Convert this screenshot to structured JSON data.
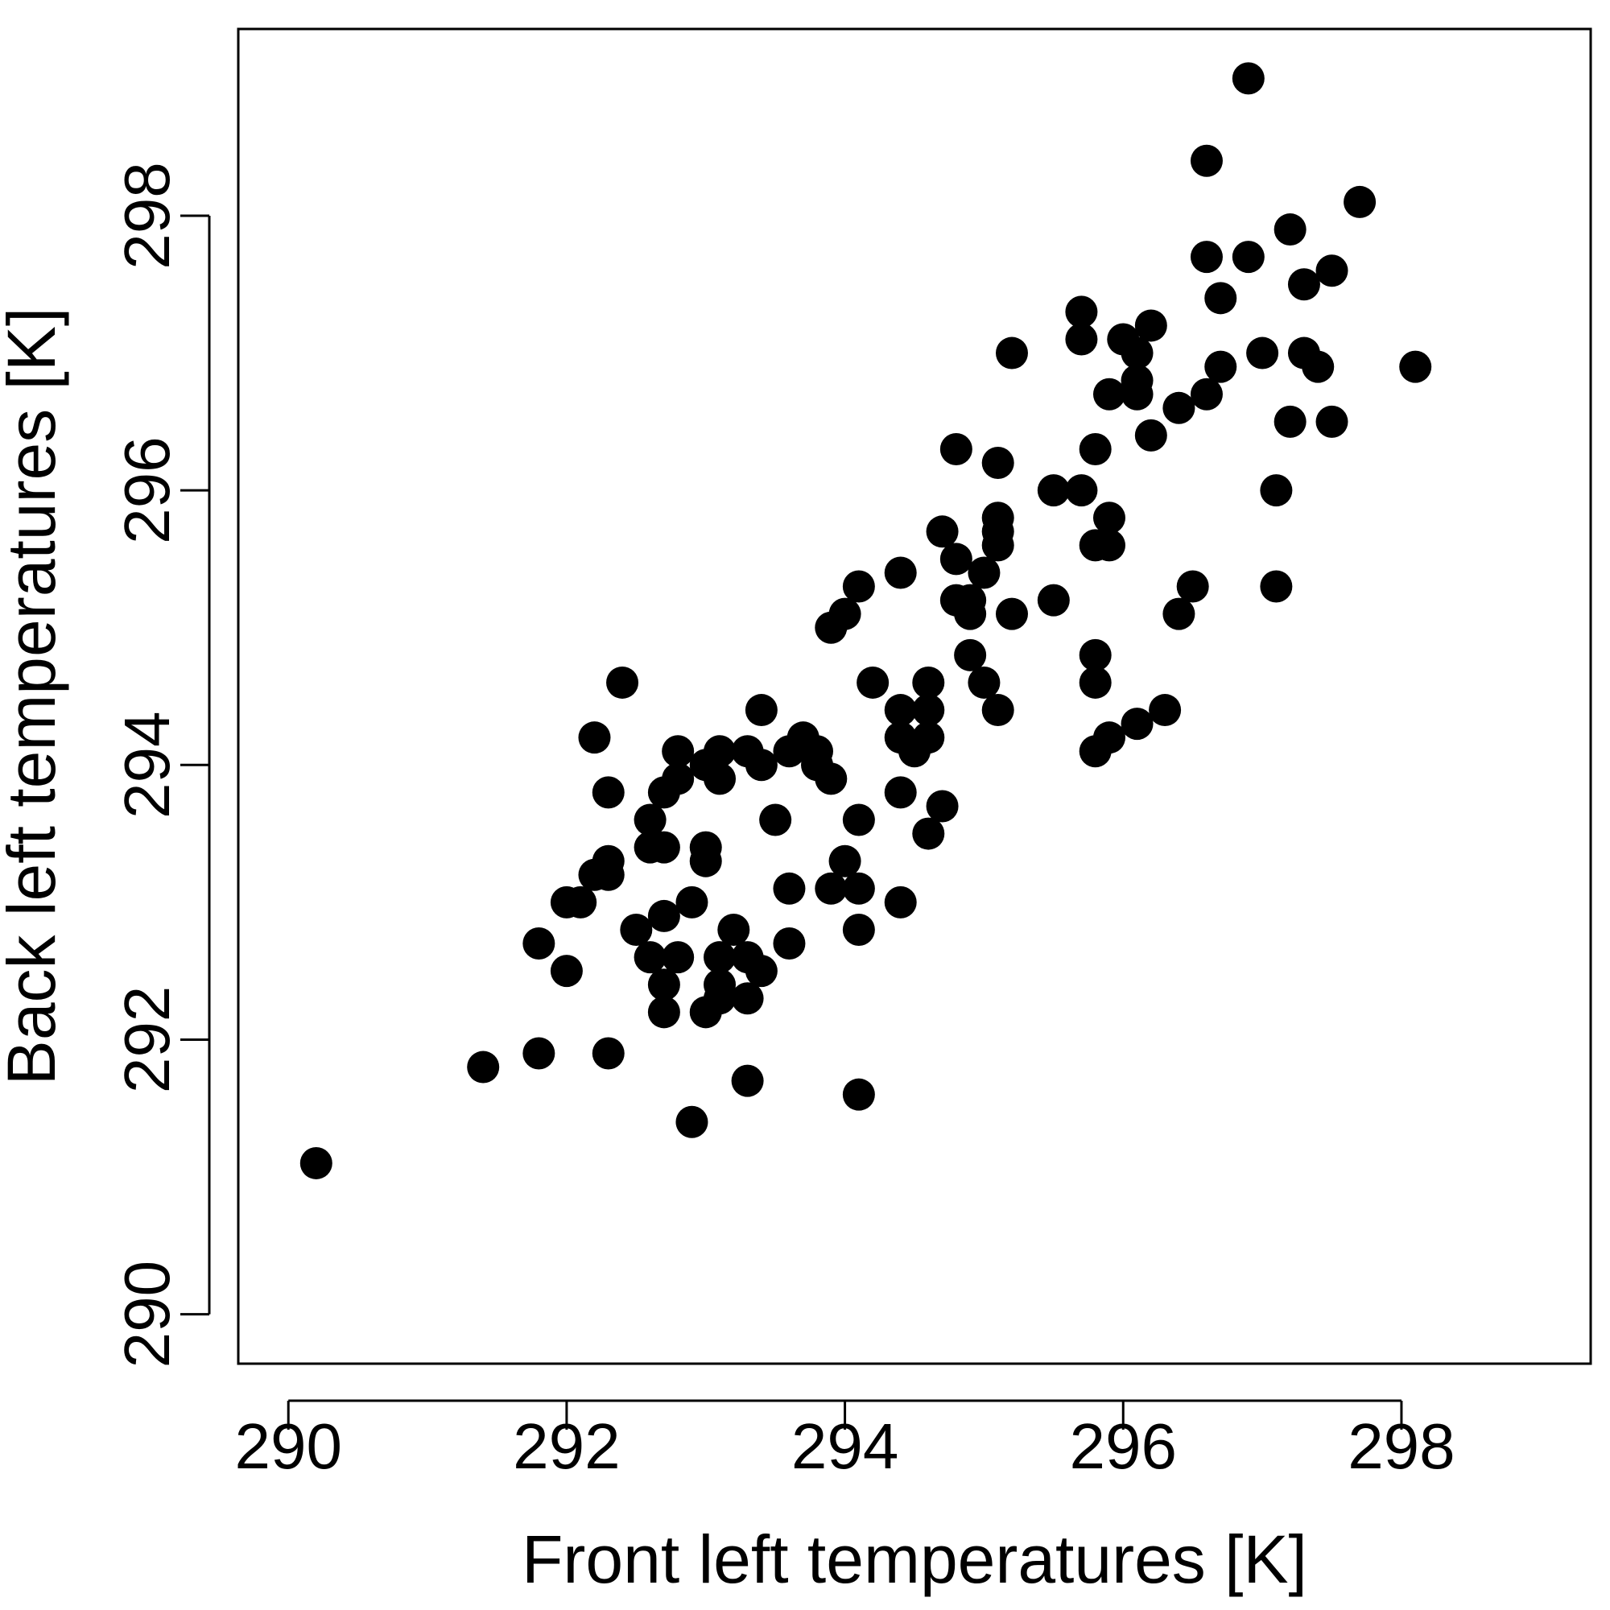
{
  "chart_data": {
    "type": "scatter",
    "title": "",
    "xlabel": "Front left temperatures [K]",
    "ylabel": "Back left temperatures [K]",
    "xlim": [
      289.64,
      299.36
    ],
    "ylim": [
      289.64,
      299.36
    ],
    "xticks": [
      290,
      292,
      294,
      296,
      298
    ],
    "yticks": [
      290,
      292,
      294,
      296,
      298
    ],
    "xtick_labels": [
      "290",
      "292",
      "294",
      "296",
      "298"
    ],
    "ytick_labels": [
      "290",
      "292",
      "294",
      "296",
      "298"
    ],
    "grid": false,
    "marker": "filled-circle",
    "color": "#000000",
    "points": [
      [
        290.2,
        291.1
      ],
      [
        291.4,
        291.8
      ],
      [
        291.8,
        291.9
      ],
      [
        292.3,
        291.9
      ],
      [
        292.9,
        291.4
      ],
      [
        293.3,
        291.7
      ],
      [
        294.1,
        291.6
      ],
      [
        291.8,
        292.7
      ],
      [
        292.0,
        292.5
      ],
      [
        292.0,
        293.0
      ],
      [
        292.1,
        293.0
      ],
      [
        292.2,
        293.2
      ],
      [
        292.3,
        293.2
      ],
      [
        292.3,
        293.3
      ],
      [
        292.5,
        292.8
      ],
      [
        292.6,
        292.6
      ],
      [
        292.6,
        293.4
      ],
      [
        292.6,
        293.6
      ],
      [
        292.7,
        292.2
      ],
      [
        292.7,
        292.4
      ],
      [
        292.7,
        292.9
      ],
      [
        292.7,
        293.4
      ],
      [
        292.7,
        293.8
      ],
      [
        292.8,
        292.6
      ],
      [
        292.8,
        293.9
      ],
      [
        292.8,
        294.1
      ],
      [
        292.9,
        293.0
      ],
      [
        293.0,
        292.2
      ],
      [
        293.0,
        293.3
      ],
      [
        293.0,
        293.4
      ],
      [
        293.0,
        294.0
      ],
      [
        293.1,
        292.3
      ],
      [
        293.1,
        292.4
      ],
      [
        293.1,
        292.6
      ],
      [
        293.1,
        293.9
      ],
      [
        293.1,
        294.1
      ],
      [
        293.2,
        292.8
      ],
      [
        293.3,
        292.3
      ],
      [
        293.3,
        292.6
      ],
      [
        293.3,
        294.1
      ],
      [
        293.4,
        292.5
      ],
      [
        293.4,
        294.0
      ],
      [
        293.4,
        294.4
      ],
      [
        293.5,
        293.6
      ],
      [
        293.6,
        292.7
      ],
      [
        293.6,
        293.1
      ],
      [
        293.6,
        294.1
      ],
      [
        293.7,
        294.2
      ],
      [
        293.8,
        294.0
      ],
      [
        293.8,
        294.1
      ],
      [
        293.9,
        293.1
      ],
      [
        293.9,
        293.9
      ],
      [
        293.9,
        295.0
      ],
      [
        294.0,
        293.3
      ],
      [
        294.0,
        295.1
      ],
      [
        294.1,
        292.8
      ],
      [
        294.1,
        293.1
      ],
      [
        294.1,
        293.6
      ],
      [
        294.1,
        295.3
      ],
      [
        294.2,
        294.6
      ],
      [
        292.2,
        294.2
      ],
      [
        292.3,
        293.8
      ],
      [
        292.4,
        294.6
      ],
      [
        294.4,
        293.0
      ],
      [
        294.4,
        293.8
      ],
      [
        294.4,
        294.2
      ],
      [
        294.4,
        294.4
      ],
      [
        294.4,
        295.4
      ],
      [
        294.5,
        294.1
      ],
      [
        294.6,
        293.5
      ],
      [
        294.6,
        294.2
      ],
      [
        294.6,
        294.4
      ],
      [
        294.6,
        294.6
      ],
      [
        294.7,
        293.7
      ],
      [
        294.7,
        295.7
      ],
      [
        294.8,
        295.2
      ],
      [
        294.8,
        295.5
      ],
      [
        294.8,
        296.3
      ],
      [
        294.9,
        294.8
      ],
      [
        294.9,
        295.1
      ],
      [
        294.9,
        295.2
      ],
      [
        295.0,
        294.6
      ],
      [
        295.0,
        295.4
      ],
      [
        295.1,
        294.4
      ],
      [
        295.1,
        295.6
      ],
      [
        295.1,
        295.7
      ],
      [
        295.1,
        295.8
      ],
      [
        295.1,
        296.2
      ],
      [
        295.2,
        295.1
      ],
      [
        295.2,
        297.0
      ],
      [
        295.5,
        295.2
      ],
      [
        295.5,
        296.0
      ],
      [
        295.7,
        296.0
      ],
      [
        295.7,
        297.1
      ],
      [
        295.7,
        297.3
      ],
      [
        295.8,
        294.1
      ],
      [
        295.8,
        294.6
      ],
      [
        295.8,
        294.8
      ],
      [
        295.8,
        295.6
      ],
      [
        295.8,
        296.3
      ],
      [
        295.9,
        294.2
      ],
      [
        295.9,
        295.6
      ],
      [
        295.9,
        295.8
      ],
      [
        295.9,
        296.7
      ],
      [
        296.0,
        297.1
      ],
      [
        296.1,
        294.3
      ],
      [
        296.1,
        296.7
      ],
      [
        296.1,
        296.8
      ],
      [
        296.1,
        297.0
      ],
      [
        296.2,
        296.4
      ],
      [
        296.2,
        297.2
      ],
      [
        296.3,
        294.4
      ],
      [
        296.4,
        295.1
      ],
      [
        296.4,
        296.6
      ],
      [
        296.5,
        295.3
      ],
      [
        296.6,
        296.7
      ],
      [
        296.6,
        297.7
      ],
      [
        296.6,
        298.4
      ],
      [
        296.7,
        296.9
      ],
      [
        296.7,
        297.4
      ],
      [
        296.9,
        297.7
      ],
      [
        296.9,
        299.0
      ],
      [
        297.0,
        297.0
      ],
      [
        297.1,
        295.3
      ],
      [
        297.1,
        296.0
      ],
      [
        297.2,
        296.5
      ],
      [
        297.2,
        297.9
      ],
      [
        297.3,
        297.0
      ],
      [
        297.3,
        297.5
      ],
      [
        297.4,
        296.9
      ],
      [
        297.5,
        296.5
      ],
      [
        297.5,
        297.6
      ],
      [
        297.7,
        298.1
      ],
      [
        298.1,
        296.9
      ]
    ]
  }
}
